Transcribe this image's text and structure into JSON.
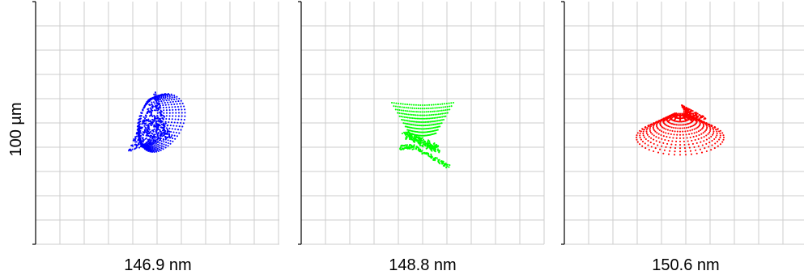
{
  "chart_data": [
    {
      "type": "scatter",
      "xlabel": "146.9 nm",
      "ylabel": "100 µm",
      "grid": true,
      "color": "#0000ff",
      "description_shape": "cone-like spiral, apex at left-bottom, loops to the right",
      "x": [],
      "y": []
    },
    {
      "type": "scatter",
      "xlabel": "148.8 nm",
      "ylabel": "",
      "grid": true,
      "color": "#00ff00",
      "description_shape": "cup shape with tail toward lower-right",
      "x": [],
      "y": []
    },
    {
      "type": "scatter",
      "xlabel": "150.6 nm",
      "ylabel": "",
      "grid": true,
      "color": "#ff0000",
      "description_shape": "fan / cone shape opening downward-right",
      "x": [],
      "y": []
    }
  ]
}
